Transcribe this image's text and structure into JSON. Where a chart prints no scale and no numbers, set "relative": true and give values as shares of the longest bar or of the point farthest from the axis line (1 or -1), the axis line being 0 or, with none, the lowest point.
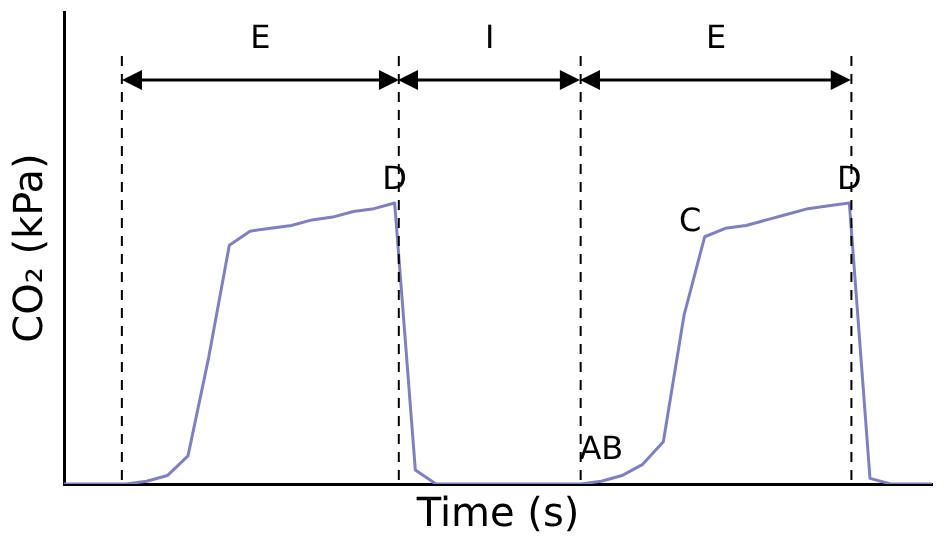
{
  "chart_data": {
    "type": "line",
    "relative": true,
    "xlabel": "Time (s)",
    "ylabel": "CO₂ (kPa)",
    "categories": [
      null,
      null,
      null,
      null,
      null,
      null,
      null,
      null,
      null,
      null,
      null,
      null,
      null,
      null,
      null,
      null,
      null,
      null,
      null,
      null,
      null,
      null,
      null,
      null,
      null,
      null,
      null,
      null,
      null,
      null,
      null,
      null,
      null,
      null,
      null,
      null,
      null,
      null,
      null,
      null,
      null,
      null,
      null
    ],
    "series": [
      {
        "color": "#8080c0",
        "values": [
          0,
          0,
          0,
          0,
          0.01,
          0.03,
          0.1,
          0.45,
          0.85,
          0.9,
          0.91,
          0.92,
          0.94,
          0.95,
          0.97,
          0.98,
          1.0,
          0.05,
          0,
          0,
          0,
          0,
          0,
          0,
          0,
          0,
          0.01,
          0.03,
          0.07,
          0.15,
          0.6,
          0.88,
          0.91,
          0.92,
          0.94,
          0.96,
          0.98,
          0.99,
          1.0,
          0.02,
          0,
          0,
          0
        ]
      }
    ],
    "annotations": [
      "E",
      "I",
      "E",
      "D",
      "C",
      "D",
      "AB"
    ],
    "marker": "none",
    "line_style": "solid",
    "grid": false,
    "legend": false
  }
}
